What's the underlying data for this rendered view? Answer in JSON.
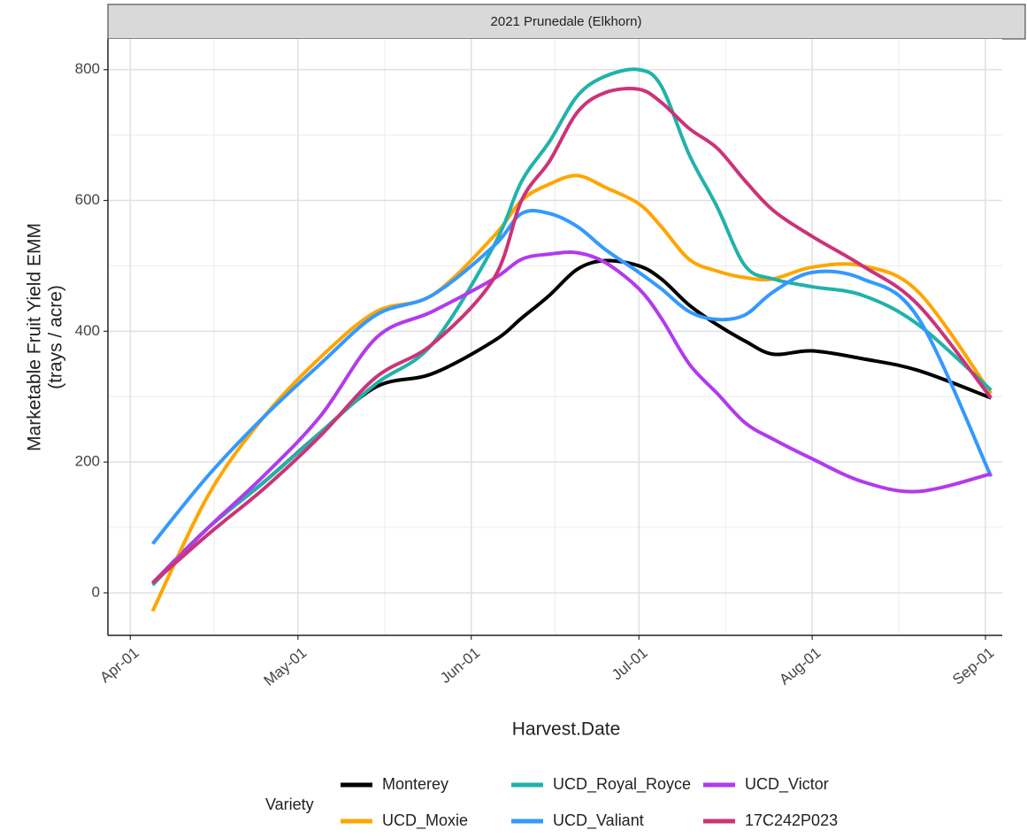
{
  "chart_data": {
    "type": "line",
    "title": "2021 Prunedale (Elkhorn)",
    "xlabel": "Harvest.Date",
    "ylabel": [
      "Marketable Fruit Yield EMM",
      "(trays / acre)"
    ],
    "legend_title": "Variety",
    "x": [
      "04-05",
      "04-15",
      "04-25",
      "05-05",
      "05-15",
      "05-25",
      "06-05",
      "06-10",
      "06-15",
      "06-20",
      "06-25",
      "07-01",
      "07-05",
      "07-10",
      "07-15",
      "07-20",
      "07-25",
      "08-01",
      "08-10",
      "08-20",
      "09-02"
    ],
    "xlim": [
      "03-28",
      "09-04"
    ],
    "xticks": [
      {
        "value": "04-01",
        "label": "Apr-01"
      },
      {
        "value": "05-01",
        "label": "May-01"
      },
      {
        "value": "06-01",
        "label": "Jun-01"
      },
      {
        "value": "07-01",
        "label": "Jul-01"
      },
      {
        "value": "08-01",
        "label": "Aug-01"
      },
      {
        "value": "09-01",
        "label": "Sep-01"
      }
    ],
    "ylim": [
      -65,
      847
    ],
    "yticks": [
      0,
      200,
      400,
      600,
      800
    ],
    "grid": true,
    "series": [
      {
        "name": "Monterey",
        "color": "#000000",
        "values": [
          15,
          100,
          170,
          245,
          315,
          335,
          385,
          420,
          455,
          495,
          508,
          500,
          480,
          440,
          410,
          385,
          365,
          370,
          358,
          340,
          298
        ]
      },
      {
        "name": "UCD_Moxie",
        "color": "#FFA500",
        "values": [
          -28,
          150,
          270,
          360,
          430,
          455,
          545,
          600,
          625,
          638,
          620,
          595,
          560,
          510,
          492,
          482,
          480,
          498,
          500,
          460,
          305
        ]
      },
      {
        "name": "UCD_Royal_Royce",
        "color": "#20B2AA",
        "values": [
          12,
          100,
          170,
          245,
          320,
          380,
          530,
          629,
          690,
          760,
          790,
          800,
          775,
          670,
          590,
          500,
          480,
          468,
          455,
          410,
          310
        ]
      },
      {
        "name": "UCD_Valiant",
        "color": "#3399FF",
        "values": [
          75,
          180,
          270,
          350,
          425,
          455,
          530,
          580,
          580,
          560,
          525,
          490,
          465,
          430,
          418,
          425,
          460,
          490,
          480,
          420,
          178
        ]
      },
      {
        "name": "UCD_Victor",
        "color": "#B23AEE",
        "values": [
          15,
          100,
          180,
          270,
          390,
          430,
          480,
          510,
          518,
          520,
          505,
          465,
          420,
          350,
          305,
          260,
          235,
          205,
          170,
          155,
          182
        ]
      },
      {
        "name": "17C242P023",
        "color": "#CC3377",
        "values": [
          15,
          90,
          160,
          240,
          330,
          380,
          480,
          600,
          660,
          735,
          765,
          770,
          750,
          710,
          680,
          630,
          585,
          545,
          500,
          440,
          298
        ]
      }
    ]
  }
}
